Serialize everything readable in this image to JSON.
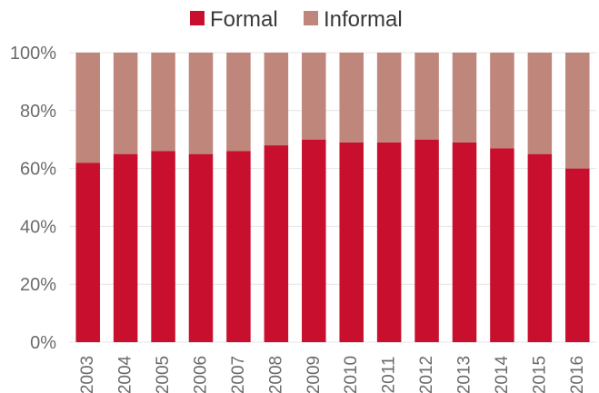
{
  "chart_data": {
    "type": "bar",
    "stacked": true,
    "categories": [
      "2003",
      "2004",
      "2005",
      "2006",
      "2007",
      "2008",
      "2009",
      "2010",
      "2011",
      "2012",
      "2013",
      "2014",
      "2015",
      "2016"
    ],
    "series": [
      {
        "name": "Formal",
        "color": "#c8102e",
        "values": [
          62,
          65,
          66,
          65,
          66,
          68,
          70,
          69,
          69,
          70,
          69,
          67,
          65,
          60
        ]
      },
      {
        "name": "Informal",
        "color": "#bf867c",
        "values": [
          38,
          35,
          34,
          35,
          34,
          32,
          30,
          31,
          31,
          30,
          31,
          33,
          35,
          40
        ]
      }
    ],
    "ylim": [
      0,
      100
    ],
    "yticks": [
      "0%",
      "20%",
      "40%",
      "60%",
      "80%",
      "100%"
    ],
    "legend_position": "top-center",
    "grid": true
  }
}
